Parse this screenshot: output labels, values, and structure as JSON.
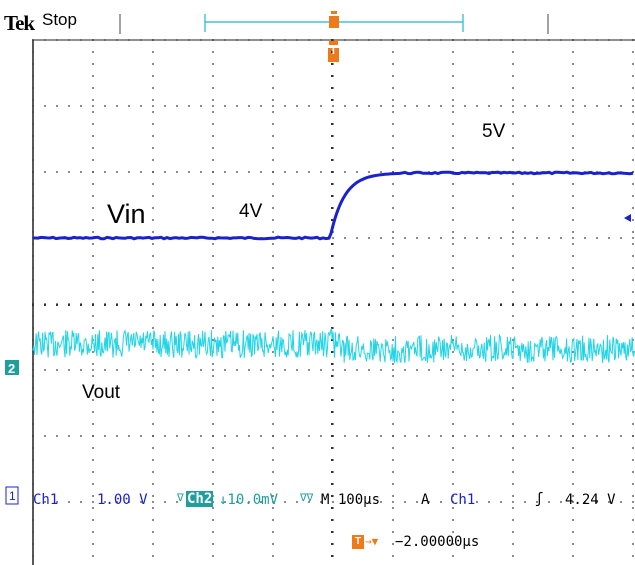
{
  "header": {
    "brand": "Tek",
    "run_state": "Stop",
    "trigger_glyph": "T"
  },
  "waveform_labels": {
    "vin": "Vin",
    "vout": "Vout",
    "level_low": "4V",
    "level_high": "5V"
  },
  "channel2_marker": "2",
  "readout": {
    "ch1_marker": "1",
    "ch1": "Ch1",
    "ch1_scale": "1.00 V",
    "ch2_prefix": "∇",
    "ch2": "Ch2",
    "ch2_scale": "↓10.0mV",
    "ch2_suffix": "∇∇",
    "timebase": "M 100µs",
    "trigger_mode": "A",
    "trigger_source": "Ch1",
    "trigger_slope": "ʃ",
    "trigger_level": "4.24 V",
    "trigger_glyph": "T",
    "arrow": "→▼",
    "position": "−2.00000µs"
  },
  "colors": {
    "ch1": "#1a22cc",
    "ch2": "#22d4e6",
    "ch2_label_bg": "#1f9e9e",
    "trigger": "#f07a1a",
    "grid": "#333333"
  }
}
